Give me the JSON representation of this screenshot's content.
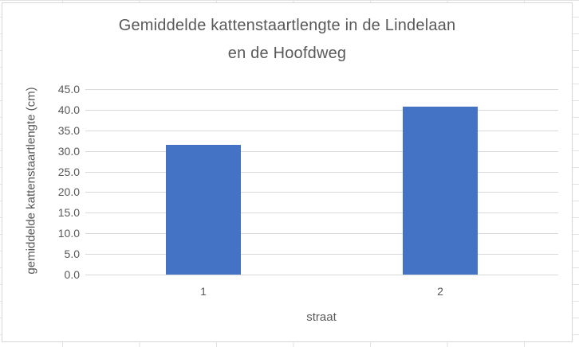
{
  "app": {
    "surface": "excel-worksheet-with-embedded-chart"
  },
  "chart_data": {
    "type": "bar",
    "title": "Gemiddelde kattenstaartlengte in de Lindelaan en de Hoofdweg",
    "title_lines": [
      "Gemiddelde kattenstaartlengte in de Lindelaan",
      "en de Hoofdweg"
    ],
    "categories": [
      "1",
      "2"
    ],
    "values": [
      31.4,
      40.7
    ],
    "xlabel": "straat",
    "ylabel": "gemiddelde kattenstaartlengte (cm)",
    "ylim": [
      0,
      45
    ],
    "y_tick_step": 5,
    "y_tick_labels": [
      "0.0",
      "5.0",
      "10.0",
      "15.0",
      "20.0",
      "25.0",
      "30.0",
      "35.0",
      "40.0",
      "45.0"
    ],
    "grid": true,
    "legend": "none",
    "colors": {
      "bar": "#4472C4",
      "text": "#595959",
      "gridline": "#D9D9D9",
      "chart_border": "#D7D7D7",
      "sheet_grid": "#E2E2E2"
    }
  }
}
